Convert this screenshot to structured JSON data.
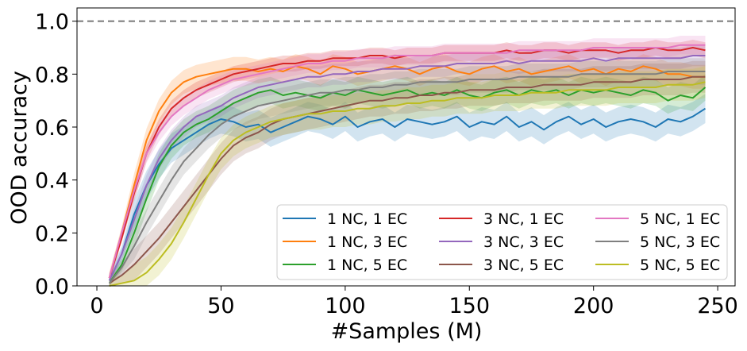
{
  "chart_data": {
    "type": "line",
    "xlabel": "#Samples (M)",
    "ylabel": "OOD accuracy",
    "xlim": [
      -8,
      257
    ],
    "ylim": [
      0.0,
      1.05
    ],
    "xticks": [
      0,
      50,
      100,
      150,
      200,
      250
    ],
    "xtick_labels": [
      "0",
      "50",
      "100",
      "150",
      "200",
      "250"
    ],
    "yticks": [
      0.0,
      0.2,
      0.4,
      0.6,
      0.8,
      1.0
    ],
    "ytick_labels": [
      "0.0",
      "0.2",
      "0.4",
      "0.6",
      "0.8",
      "1.0"
    ],
    "reference_line": {
      "y": 1.0,
      "style": "dashed",
      "color": "#808080"
    },
    "legend": {
      "placement": "lower-right",
      "columns": 3
    },
    "x": [
      5,
      10,
      15,
      20,
      25,
      30,
      35,
      40,
      45,
      50,
      55,
      60,
      65,
      70,
      75,
      80,
      85,
      90,
      95,
      100,
      105,
      110,
      115,
      120,
      125,
      130,
      135,
      140,
      145,
      150,
      155,
      160,
      165,
      170,
      175,
      180,
      185,
      190,
      195,
      200,
      205,
      210,
      215,
      220,
      225,
      230,
      235,
      240,
      245
    ],
    "series": [
      {
        "name": "1 NC, 1 EC",
        "color": "#1f77b4",
        "band": 0.055,
        "values": [
          0.02,
          0.12,
          0.27,
          0.38,
          0.46,
          0.52,
          0.55,
          0.58,
          0.61,
          0.63,
          0.62,
          0.6,
          0.61,
          0.58,
          0.6,
          0.62,
          0.64,
          0.63,
          0.61,
          0.64,
          0.6,
          0.62,
          0.63,
          0.6,
          0.63,
          0.62,
          0.61,
          0.62,
          0.64,
          0.6,
          0.62,
          0.61,
          0.64,
          0.6,
          0.62,
          0.59,
          0.62,
          0.64,
          0.61,
          0.63,
          0.6,
          0.62,
          0.63,
          0.62,
          0.6,
          0.63,
          0.62,
          0.64,
          0.67
        ]
      },
      {
        "name": "1 NC, 3 EC",
        "color": "#ff7f0e",
        "band": 0.045,
        "values": [
          0.03,
          0.2,
          0.38,
          0.55,
          0.66,
          0.73,
          0.77,
          0.79,
          0.8,
          0.81,
          0.82,
          0.82,
          0.81,
          0.82,
          0.81,
          0.83,
          0.82,
          0.8,
          0.83,
          0.82,
          0.8,
          0.81,
          0.82,
          0.83,
          0.82,
          0.8,
          0.82,
          0.83,
          0.81,
          0.8,
          0.82,
          0.83,
          0.81,
          0.82,
          0.8,
          0.81,
          0.82,
          0.83,
          0.81,
          0.82,
          0.8,
          0.82,
          0.81,
          0.83,
          0.82,
          0.8,
          0.8,
          0.79,
          0.79
        ]
      },
      {
        "name": "1 NC, 5 EC",
        "color": "#2ca02c",
        "band": 0.05,
        "values": [
          0.01,
          0.08,
          0.2,
          0.33,
          0.45,
          0.53,
          0.58,
          0.61,
          0.63,
          0.66,
          0.69,
          0.71,
          0.73,
          0.74,
          0.72,
          0.73,
          0.72,
          0.71,
          0.73,
          0.72,
          0.74,
          0.73,
          0.72,
          0.73,
          0.74,
          0.72,
          0.73,
          0.72,
          0.74,
          0.72,
          0.71,
          0.73,
          0.74,
          0.72,
          0.74,
          0.73,
          0.74,
          0.72,
          0.74,
          0.73,
          0.74,
          0.73,
          0.72,
          0.74,
          0.73,
          0.7,
          0.72,
          0.71,
          0.75
        ]
      },
      {
        "name": "3 NC, 1 EC",
        "color": "#d62728",
        "band": 0.03,
        "values": [
          0.03,
          0.18,
          0.35,
          0.5,
          0.6,
          0.67,
          0.71,
          0.74,
          0.76,
          0.78,
          0.8,
          0.81,
          0.82,
          0.83,
          0.84,
          0.84,
          0.85,
          0.85,
          0.86,
          0.86,
          0.86,
          0.87,
          0.87,
          0.86,
          0.87,
          0.87,
          0.87,
          0.88,
          0.88,
          0.88,
          0.88,
          0.88,
          0.89,
          0.88,
          0.88,
          0.89,
          0.89,
          0.88,
          0.89,
          0.89,
          0.89,
          0.88,
          0.89,
          0.89,
          0.9,
          0.89,
          0.89,
          0.9,
          0.89
        ]
      },
      {
        "name": "3 NC, 3 EC",
        "color": "#9467bd",
        "band": 0.04,
        "values": [
          0.02,
          0.12,
          0.25,
          0.38,
          0.48,
          0.55,
          0.6,
          0.64,
          0.66,
          0.68,
          0.71,
          0.73,
          0.75,
          0.76,
          0.77,
          0.78,
          0.79,
          0.79,
          0.8,
          0.8,
          0.81,
          0.81,
          0.82,
          0.82,
          0.82,
          0.83,
          0.83,
          0.83,
          0.84,
          0.84,
          0.84,
          0.84,
          0.85,
          0.84,
          0.85,
          0.85,
          0.85,
          0.85,
          0.85,
          0.86,
          0.85,
          0.86,
          0.86,
          0.86,
          0.86,
          0.86,
          0.86,
          0.87,
          0.87
        ]
      },
      {
        "name": "3 NC, 5 EC",
        "color": "#8c564b",
        "band": 0.06,
        "values": [
          0.01,
          0.04,
          0.08,
          0.13,
          0.18,
          0.24,
          0.3,
          0.36,
          0.42,
          0.48,
          0.53,
          0.56,
          0.58,
          0.61,
          0.63,
          0.64,
          0.65,
          0.66,
          0.67,
          0.68,
          0.69,
          0.7,
          0.7,
          0.71,
          0.71,
          0.72,
          0.72,
          0.73,
          0.73,
          0.74,
          0.74,
          0.74,
          0.75,
          0.75,
          0.75,
          0.76,
          0.76,
          0.76,
          0.76,
          0.77,
          0.77,
          0.77,
          0.77,
          0.78,
          0.78,
          0.78,
          0.78,
          0.79,
          0.79
        ]
      },
      {
        "name": "5 NC, 1 EC",
        "color": "#e377c2",
        "band": 0.035,
        "values": [
          0.03,
          0.2,
          0.36,
          0.5,
          0.58,
          0.64,
          0.68,
          0.71,
          0.74,
          0.76,
          0.78,
          0.79,
          0.8,
          0.81,
          0.82,
          0.83,
          0.84,
          0.84,
          0.85,
          0.85,
          0.86,
          0.86,
          0.86,
          0.87,
          0.87,
          0.87,
          0.87,
          0.88,
          0.88,
          0.88,
          0.88,
          0.88,
          0.88,
          0.89,
          0.89,
          0.89,
          0.89,
          0.89,
          0.89,
          0.9,
          0.9,
          0.9,
          0.9,
          0.9,
          0.9,
          0.9,
          0.91,
          0.91,
          0.91
        ]
      },
      {
        "name": "5 NC, 3 EC",
        "color": "#7f7f7f",
        "band": 0.05,
        "values": [
          0.01,
          0.07,
          0.15,
          0.24,
          0.32,
          0.4,
          0.47,
          0.52,
          0.57,
          0.61,
          0.64,
          0.66,
          0.68,
          0.69,
          0.7,
          0.71,
          0.72,
          0.73,
          0.73,
          0.74,
          0.74,
          0.75,
          0.75,
          0.76,
          0.76,
          0.77,
          0.77,
          0.77,
          0.77,
          0.78,
          0.78,
          0.78,
          0.78,
          0.79,
          0.79,
          0.79,
          0.79,
          0.79,
          0.8,
          0.8,
          0.8,
          0.8,
          0.8,
          0.8,
          0.8,
          0.81,
          0.81,
          0.81,
          0.81
        ]
      },
      {
        "name": "5 NC, 5 EC",
        "color": "#bcbd22",
        "band": 0.06,
        "values": [
          0.0,
          0.01,
          0.02,
          0.05,
          0.1,
          0.16,
          0.24,
          0.33,
          0.42,
          0.5,
          0.55,
          0.58,
          0.6,
          0.62,
          0.63,
          0.64,
          0.65,
          0.65,
          0.66,
          0.66,
          0.67,
          0.67,
          0.68,
          0.68,
          0.69,
          0.69,
          0.7,
          0.7,
          0.71,
          0.71,
          0.71,
          0.72,
          0.72,
          0.72,
          0.73,
          0.73,
          0.73,
          0.74,
          0.74,
          0.74,
          0.74,
          0.75,
          0.75,
          0.75,
          0.75,
          0.76,
          0.76,
          0.76,
          0.77
        ]
      }
    ]
  }
}
